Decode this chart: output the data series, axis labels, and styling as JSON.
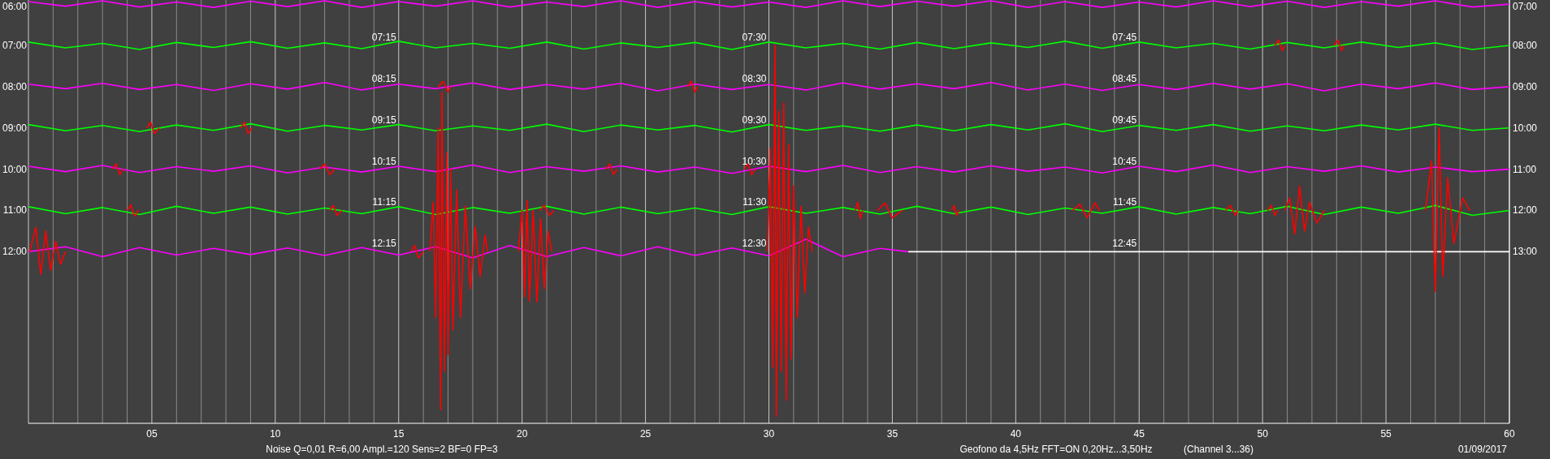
{
  "chart_data": {
    "type": "line",
    "xlim": [
      0,
      60
    ],
    "ylim": [
      16.16,
      5.9
    ],
    "y2lim": [
      17.16,
      6.9
    ],
    "grid": "x",
    "xticks": [
      {
        "value": 1,
        "label": null
      },
      {
        "value": 2,
        "label": null
      },
      {
        "value": 3,
        "label": null
      },
      {
        "value": 4,
        "label": null
      },
      {
        "value": 5,
        "label": "05"
      },
      {
        "value": 6,
        "label": null
      },
      {
        "value": 7,
        "label": null
      },
      {
        "value": 8,
        "label": null
      },
      {
        "value": 9,
        "label": null
      },
      10,
      {
        "value": 11,
        "label": null
      },
      {
        "value": 12,
        "label": null
      },
      {
        "value": 13,
        "label": null
      },
      {
        "value": 14,
        "label": null
      },
      15,
      {
        "value": 16,
        "label": null
      },
      {
        "value": 17,
        "label": null
      },
      {
        "value": 18,
        "label": null
      },
      {
        "value": 19,
        "label": null
      },
      20,
      {
        "value": 21,
        "label": null
      },
      {
        "value": 22,
        "label": null
      },
      {
        "value": 23,
        "label": null
      },
      {
        "value": 24,
        "label": null
      },
      25,
      {
        "value": 26,
        "label": null
      },
      {
        "value": 27,
        "label": null
      },
      {
        "value": 28,
        "label": null
      },
      {
        "value": 29,
        "label": null
      },
      30,
      {
        "value": 31,
        "label": null
      },
      {
        "value": 32,
        "label": null
      },
      {
        "value": 33,
        "label": null
      },
      {
        "value": 34,
        "label": null
      },
      35,
      {
        "value": 36,
        "label": null
      },
      {
        "value": 37,
        "label": null
      },
      {
        "value": 38,
        "label": null
      },
      {
        "value": 39,
        "label": null
      },
      40,
      {
        "value": 41,
        "label": null
      },
      {
        "value": 42,
        "label": null
      },
      {
        "value": 43,
        "label": null
      },
      {
        "value": 44,
        "label": null
      },
      45,
      {
        "value": 46,
        "label": null
      },
      {
        "value": 47,
        "label": null
      },
      {
        "value": 48,
        "label": null
      },
      {
        "value": 49,
        "label": null
      },
      50,
      {
        "value": 51,
        "label": null
      },
      {
        "value": 52,
        "label": null
      },
      {
        "value": 53,
        "label": null
      },
      {
        "value": 54,
        "label": null
      },
      55,
      {
        "value": 56,
        "label": null
      },
      {
        "value": 57,
        "label": null
      },
      {
        "value": 58,
        "label": null
      },
      {
        "value": 59,
        "label": null
      },
      60
    ],
    "yticks": [
      {
        "value": 6,
        "label": "06:00"
      },
      {
        "value": 7,
        "label": "07:00"
      },
      {
        "value": 8,
        "label": "08:00"
      },
      {
        "value": 9,
        "label": "09:00"
      },
      {
        "value": 10,
        "label": "10:00"
      },
      {
        "value": 11,
        "label": "11:00"
      },
      {
        "value": 12,
        "label": "12:00"
      }
    ],
    "y2ticks": [
      {
        "value": 7,
        "label": "07:00"
      },
      {
        "value": 8,
        "label": "08:00"
      },
      {
        "value": 9,
        "label": "09:00"
      },
      {
        "value": 10,
        "label": "10:00"
      },
      {
        "value": 11,
        "label": "11:00"
      },
      {
        "value": 12,
        "label": "12:00"
      },
      {
        "value": 13,
        "label": "13:00"
      }
    ],
    "x": [
      0,
      1.5,
      3,
      4.5,
      6,
      7.5,
      9,
      10.5,
      12,
      13.5,
      15,
      16.5,
      18,
      19.5,
      21,
      22.5,
      24,
      25.5,
      27,
      28.5,
      30,
      31.5,
      33,
      34.5,
      36,
      37.5,
      39,
      40.5,
      42,
      43.5,
      45,
      46.5,
      48,
      49.5,
      51,
      52.5,
      54,
      55.5,
      57,
      58.5,
      60
    ],
    "series": [
      {
        "color": "#ff00ff",
        "values": [
          5.94,
          6.05,
          5.92,
          6.07,
          5.95,
          6.08,
          5.93,
          6.06,
          5.92,
          6.08,
          5.94,
          6.05,
          5.92,
          6.07,
          5.95,
          6.06,
          5.92,
          6.08,
          5.94,
          6.07,
          5.95,
          6.08,
          5.92,
          6.06,
          5.93,
          6.05,
          5.92,
          6.08,
          5.94,
          6.08,
          5.95,
          6.07,
          5.92,
          6.06,
          5.93,
          6.08,
          5.94,
          6.05,
          5.92,
          6.07,
          6
        ]
      },
      {
        "color": "#00ff00",
        "values": [
          6.92,
          7.06,
          6.95,
          7.1,
          6.93,
          7.05,
          6.91,
          7.07,
          6.94,
          7.08,
          6.9,
          7.06,
          6.95,
          7.07,
          6.92,
          7.09,
          6.94,
          7.05,
          6.93,
          7.1,
          6.92,
          7.06,
          6.95,
          7.09,
          6.93,
          7.08,
          6.94,
          7.05,
          6.9,
          7.07,
          6.92,
          7.06,
          6.95,
          7.09,
          6.93,
          7.06,
          6.92,
          7.05,
          6.94,
          7.1,
          7
        ]
      },
      {
        "color": "#ff00ff",
        "values": [
          7.94,
          8.05,
          7.92,
          8.07,
          7.95,
          8.09,
          7.93,
          8.06,
          7.9,
          8.08,
          7.94,
          8.05,
          7.91,
          8.07,
          7.95,
          8.06,
          7.92,
          8.1,
          7.94,
          8.07,
          7.95,
          8.08,
          7.91,
          8.06,
          7.93,
          8.05,
          7.9,
          8.08,
          7.94,
          8.09,
          7.95,
          8.07,
          7.92,
          8.06,
          7.93,
          8.1,
          7.94,
          8.05,
          7.91,
          8.07,
          8
        ]
      },
      {
        "color": "#00ff00",
        "values": [
          8.92,
          9.07,
          8.94,
          9.09,
          8.93,
          9.06,
          8.9,
          9.08,
          8.94,
          9.05,
          8.92,
          9.07,
          8.95,
          9.06,
          8.91,
          9.09,
          8.93,
          9.05,
          8.94,
          9.1,
          8.92,
          9.06,
          8.95,
          9.08,
          8.93,
          9.07,
          8.92,
          9.05,
          8.9,
          9.09,
          8.94,
          9.06,
          8.92,
          9.08,
          8.95,
          9.07,
          8.93,
          9.05,
          8.91,
          9.06,
          9
        ]
      },
      {
        "color": "#ff00ff",
        "values": [
          9.93,
          10.06,
          9.91,
          10.08,
          9.94,
          10.05,
          9.92,
          10.09,
          9.95,
          10.07,
          9.93,
          10.06,
          9.9,
          10.08,
          9.94,
          10.05,
          9.92,
          10.07,
          9.95,
          10.1,
          9.93,
          10.06,
          9.91,
          10.08,
          9.94,
          10.07,
          9.92,
          10.05,
          9.95,
          10.09,
          9.93,
          10.06,
          9.9,
          10.08,
          9.94,
          10.05,
          9.92,
          10.07,
          9.95,
          10.06,
          10
        ]
      },
      {
        "color": "#00ff00",
        "values": [
          10.91,
          11.08,
          10.93,
          11.1,
          10.9,
          11.07,
          10.92,
          11.09,
          10.94,
          11.08,
          10.91,
          11.1,
          10.93,
          11.07,
          10.9,
          11.09,
          10.92,
          11.08,
          10.94,
          11.1,
          10.91,
          11.07,
          10.93,
          11.09,
          10.9,
          11.08,
          10.92,
          11.1,
          10.94,
          11.07,
          10.91,
          11.09,
          10.93,
          11.08,
          10.9,
          11.1,
          10.92,
          11.07,
          10.88,
          11.12,
          11
        ]
      },
      {
        "color": "#ff00ff",
        "x": [
          0,
          1.5,
          3,
          4.5,
          6,
          7.5,
          9,
          10.5,
          12,
          13.5,
          15,
          16.5,
          18,
          19.5,
          21,
          22.5,
          24,
          25.5,
          27,
          28.5,
          30,
          31.5,
          33,
          34.5,
          35.65
        ],
        "values": [
          12,
          11.88,
          12.12,
          11.9,
          12.08,
          11.92,
          12.07,
          11.91,
          12.09,
          11.9,
          12.08,
          11.88,
          12.15,
          11.85,
          12.12,
          11.9,
          12.1,
          11.88,
          12.09,
          11.91,
          12.1,
          11.7,
          12.12,
          11.92,
          12
        ]
      },
      {
        "color": "#ffffff",
        "x": [
          35.65,
          60
        ],
        "values": [
          12,
          12
        ]
      },
      {
        "color": "#ff0000",
        "x": [
          0.05,
          0.3,
          0.5,
          0.7,
          0.9,
          1.1,
          1.3,
          1.5
        ],
        "values": [
          12,
          11.41,
          12.55,
          11.5,
          12.45,
          11.75,
          12.3,
          12
        ]
      },
      {
        "color": "#ff0000",
        "x": [
          15.5,
          15.65,
          15.8,
          16
        ],
        "values": [
          12,
          11.85,
          12.15,
          12
        ]
      },
      {
        "color": "#ff0000",
        "x": [
          16.26,
          16.4,
          16.5,
          16.6,
          16.7,
          16.75,
          16.85,
          16.95,
          17,
          17.1,
          17.2,
          17.35,
          17.5,
          17.7,
          17.9,
          18.1,
          18.3,
          18.5,
          18.6
        ],
        "values": [
          12,
          10.8,
          13.6,
          9,
          15.83,
          8.13,
          14.9,
          9.6,
          14.5,
          10,
          13.9,
          10.5,
          13.6,
          10.9,
          12.9,
          11.4,
          12.6,
          11.6,
          12
        ]
      },
      {
        "color": "#ff0000",
        "x": [
          19.85,
          20,
          20.1,
          20.2,
          20.3,
          20.45,
          20.6,
          20.75,
          20.9,
          21.05,
          21.2
        ],
        "values": [
          12,
          11,
          13.1,
          10.76,
          13.2,
          11,
          13.22,
          11.2,
          12.9,
          11.5,
          12
        ]
      },
      {
        "color": "#ff0000",
        "x": [
          29.95,
          30.05,
          30.15,
          30.25,
          30.3,
          30.4,
          30.5,
          30.6,
          30.7,
          30.8,
          30.9,
          31,
          31.15,
          31.3,
          31.45,
          31.6,
          31.76
        ],
        "values": [
          12,
          9.5,
          14.8,
          7,
          15.99,
          8.6,
          14.9,
          8.4,
          15.6,
          9.4,
          14.6,
          10.4,
          13.6,
          10.9,
          13,
          11.4,
          12
        ]
      },
      {
        "color": "#ff0000",
        "x": [
          4,
          4.15,
          4.3,
          4.45
        ],
        "values": [
          11,
          10.86,
          11.14,
          11
        ]
      },
      {
        "color": "#ff0000",
        "x": [
          12.2,
          12.35,
          12.5,
          12.7
        ],
        "values": [
          11,
          10.88,
          11.12,
          11
        ]
      },
      {
        "color": "#ff0000",
        "x": [
          20.7,
          20.9,
          21.1,
          21.3
        ],
        "values": [
          11,
          10.88,
          11.12,
          11
        ]
      },
      {
        "color": "#ff0000",
        "x": [
          33.5,
          33.6,
          33.7,
          33.8
        ],
        "values": [
          11,
          10.8,
          11.2,
          11
        ]
      },
      {
        "color": "#ff0000",
        "x": [
          34.4,
          34.7,
          35,
          35.4
        ],
        "values": [
          11,
          10.82,
          11.18,
          11
        ]
      },
      {
        "color": "#ff0000",
        "x": [
          37.4,
          37.5,
          37.6,
          37.7
        ],
        "values": [
          11,
          10.88,
          11.12,
          11
        ]
      },
      {
        "color": "#ff0000",
        "x": [
          42.3,
          42.6,
          42.9,
          43.2,
          43.4
        ],
        "values": [
          11,
          10.85,
          11.18,
          10.82,
          11
        ]
      },
      {
        "color": "#ff0000",
        "x": [
          48.5,
          48.7,
          48.9,
          49
        ],
        "values": [
          11,
          10.88,
          11.12,
          11
        ]
      },
      {
        "color": "#ff0000",
        "x": [
          50.2,
          50.35,
          50.5,
          50.6
        ],
        "values": [
          11,
          10.88,
          11.12,
          11
        ]
      },
      {
        "color": "#ff0000",
        "x": [
          50.9,
          51.1,
          51.3,
          51.5,
          51.7,
          51.9,
          52.2,
          52.5
        ],
        "values": [
          11,
          10.7,
          11.57,
          10.41,
          11.5,
          10.8,
          11.3,
          11
        ]
      },
      {
        "color": "#ff0000",
        "x": [
          56.6,
          56.85,
          57,
          57.15,
          57.3,
          57.5,
          57.75,
          58.1,
          58.4
        ],
        "values": [
          11,
          9.8,
          12.96,
          9,
          12.6,
          10.2,
          11.8,
          10.7,
          11
        ]
      },
      {
        "color": "#ff0000",
        "x": [
          3.4,
          3.55,
          3.7,
          3.85
        ],
        "values": [
          10,
          9.87,
          10.13,
          10
        ]
      },
      {
        "color": "#ff0000",
        "x": [
          11.8,
          12,
          12.2,
          12.4
        ],
        "values": [
          10,
          9.87,
          10.13,
          10
        ]
      },
      {
        "color": "#ff0000",
        "x": [
          23.4,
          23.55,
          23.7,
          23.85
        ],
        "values": [
          10,
          9.87,
          10.13,
          10
        ]
      },
      {
        "color": "#ff0000",
        "x": [
          29,
          29.15,
          29.3,
          29.45
        ],
        "values": [
          10,
          9.87,
          10.13,
          10
        ]
      },
      {
        "color": "#ff0000",
        "x": [
          4.8,
          4.95,
          5.1,
          5.3
        ],
        "values": [
          9,
          8.86,
          9.14,
          9
        ]
      },
      {
        "color": "#ff0000",
        "x": [
          8.6,
          8.75,
          8.9,
          9.05
        ],
        "values": [
          9,
          8.86,
          9.14,
          9
        ]
      },
      {
        "color": "#ff0000",
        "x": [
          16.6,
          16.8,
          17,
          17.1
        ],
        "values": [
          8,
          7.87,
          8.13,
          8
        ]
      },
      {
        "color": "#ff0000",
        "x": [
          26.7,
          26.85,
          27,
          27.1
        ],
        "values": [
          8,
          7.87,
          8.13,
          8
        ]
      },
      {
        "color": "#ff0000",
        "x": [
          50.5,
          50.65,
          50.8,
          50.9
        ],
        "values": [
          7,
          6.87,
          7.13,
          7
        ]
      },
      {
        "color": "#ff0000",
        "x": [
          52.9,
          53.05,
          53.2,
          53.3
        ],
        "values": [
          7,
          6.87,
          7.13,
          7
        ]
      }
    ],
    "annotations": [
      {
        "text": "07:15",
        "x": 15,
        "y": 7
      },
      {
        "text": "07:30",
        "x": 30,
        "y": 7
      },
      {
        "text": "07:45",
        "x": 45,
        "y": 7
      },
      {
        "text": "08:15",
        "x": 15,
        "y": 8
      },
      {
        "text": "08:30",
        "x": 30,
        "y": 8
      },
      {
        "text": "08:45",
        "x": 45,
        "y": 8
      },
      {
        "text": "09:15",
        "x": 15,
        "y": 9
      },
      {
        "text": "09:30",
        "x": 30,
        "y": 9
      },
      {
        "text": "09:45",
        "x": 45,
        "y": 9
      },
      {
        "text": "10:15",
        "x": 15,
        "y": 10
      },
      {
        "text": "10:30",
        "x": 30,
        "y": 10
      },
      {
        "text": "10:45",
        "x": 45,
        "y": 10
      },
      {
        "text": "11:15",
        "x": 15,
        "y": 11
      },
      {
        "text": "11:30",
        "x": 30,
        "y": 11
      },
      {
        "text": "11:45",
        "x": 45,
        "y": 11
      },
      {
        "text": "12:15",
        "x": 15,
        "y": 12
      },
      {
        "text": "12:30",
        "x": 30,
        "y": 12
      },
      {
        "text": "12:45",
        "x": 45,
        "y": 12
      },
      "Noise Q=0,01 R=6,00 Ampl.=120 Sens=2 BF=0 FP=3",
      "Geofono da 4,5Hz FFT=ON 0,20Hz...3,50Hz",
      "(Channel 3...36)",
      "01/09/2017"
    ]
  }
}
